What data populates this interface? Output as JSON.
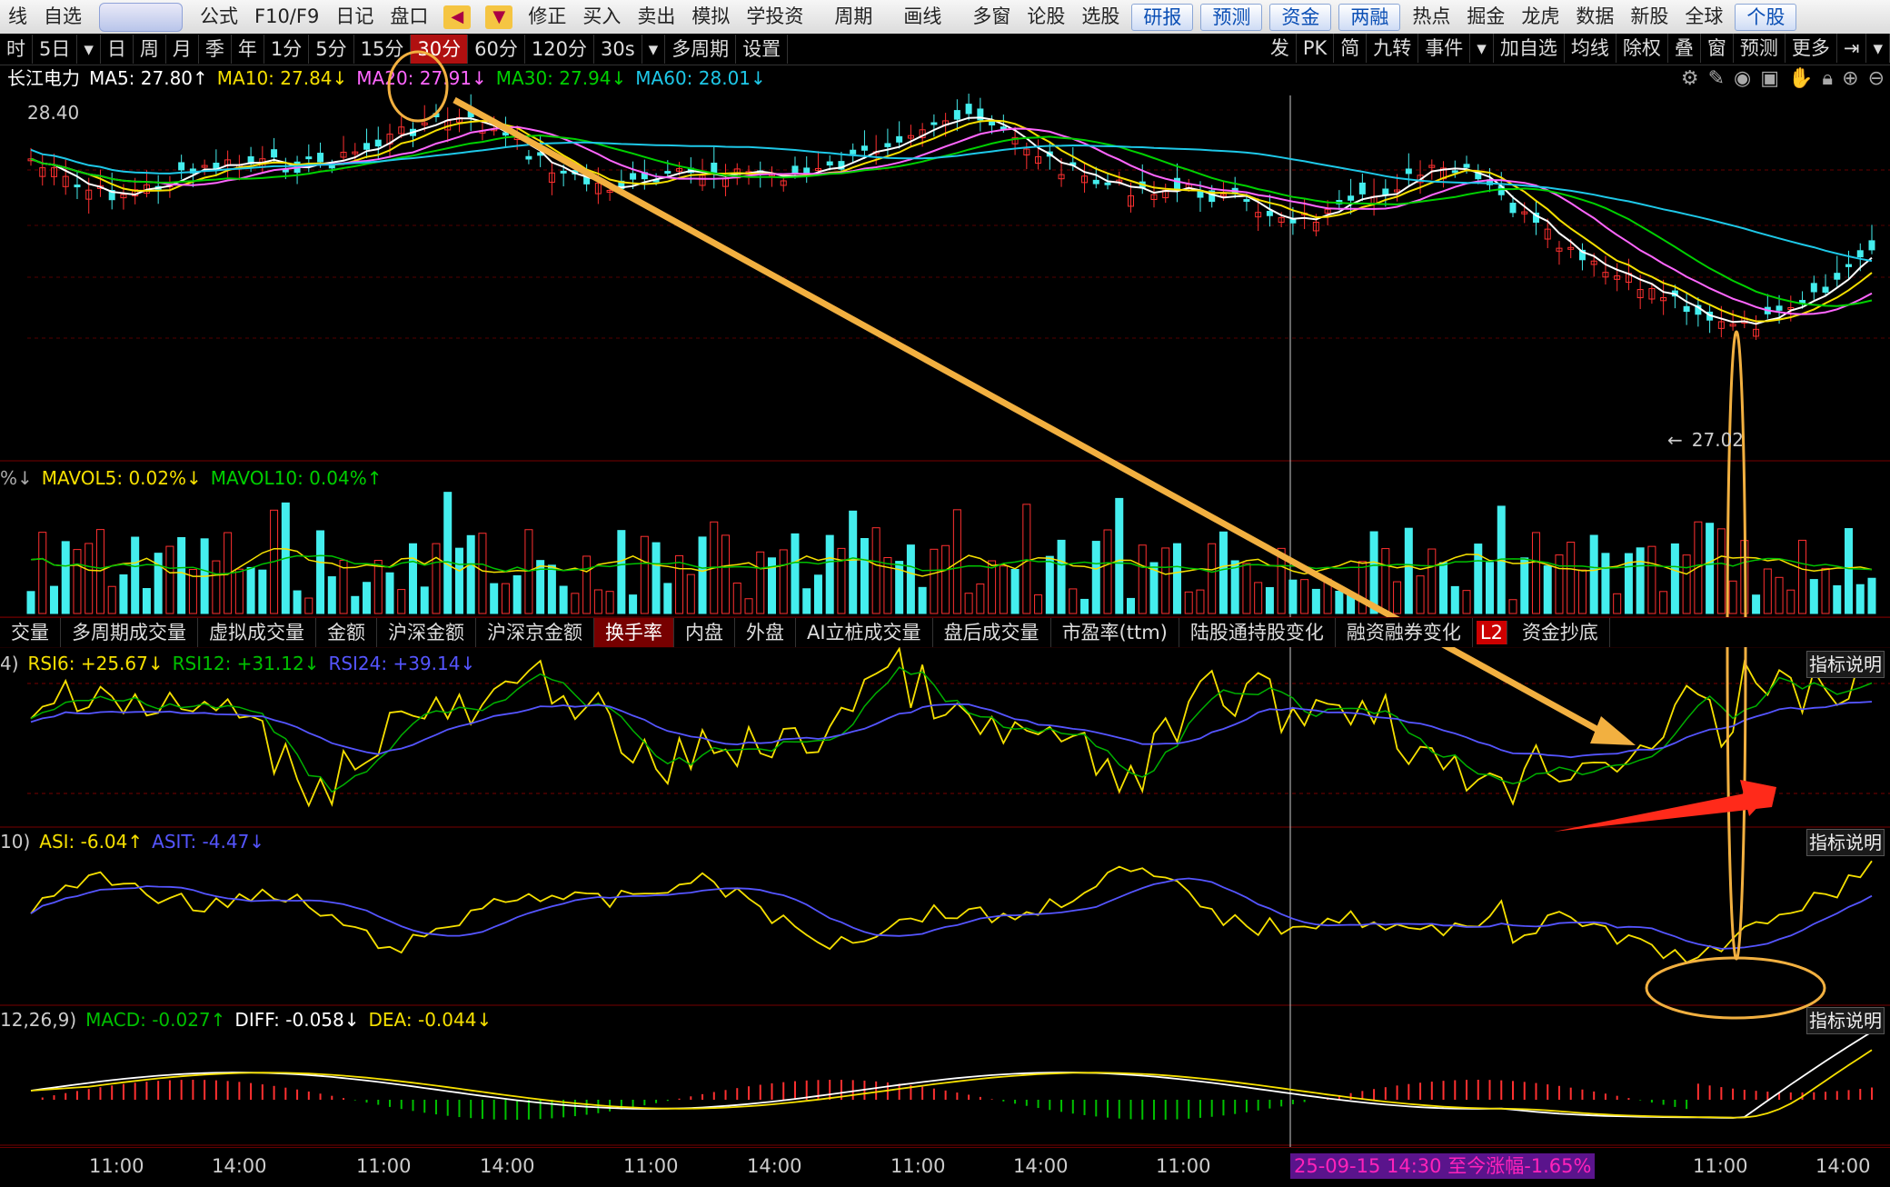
{
  "toolbar": {
    "items": [
      "线",
      "自选",
      "公式",
      "F10/F9",
      "日记",
      "盘口",
      "修正",
      "买入",
      "卖出",
      "模拟",
      "学投资",
      "周期",
      "画线",
      "多窗",
      "论股",
      "选股"
    ],
    "highlight": [
      "研报",
      "预测",
      "资金",
      "两融"
    ],
    "items2": [
      "热点",
      "掘金",
      "龙虎",
      "数据",
      "新股",
      "全球"
    ],
    "last": "个股"
  },
  "periods": {
    "items": [
      "时",
      "5日",
      "日",
      "周",
      "月",
      "季",
      "年",
      "1分",
      "5分",
      "15分",
      "30分",
      "60分",
      "120分",
      "30s",
      "多周期",
      "设置"
    ],
    "active": "30分",
    "right": [
      "发",
      "PK",
      "简",
      "九转",
      "事件",
      "加自选",
      "均线",
      "除权",
      "叠",
      "窗",
      "预测",
      "更多"
    ]
  },
  "ma": {
    "stock": "长江电力",
    "ma5": "MA5: 27.80↑",
    "ma10": "MA10: 27.84↓",
    "ma20": "MA20: 27.91↓",
    "ma30": "MA30: 27.94↓",
    "ma60": "MA60: 28.01↓",
    "price_top": "28.40",
    "price_low": "27.02"
  },
  "colors": {
    "ma5": "#ffffff",
    "ma10": "#f6e000",
    "ma20": "#ff66ff",
    "ma30": "#00d000",
    "ma60": "#1ec8e8",
    "up": "#ff3030",
    "down": "#44eeee",
    "highlight": "#f2b040",
    "arrow": "#ff2a1a"
  },
  "volume": {
    "mavol5": "MAVOL5: 0.02%↓",
    "mavol10": "MAVOL10: 0.04%↑",
    "prefix": "%↓"
  },
  "indicators": {
    "items": [
      "交量",
      "多周期成交量",
      "虚拟成交量",
      "金额",
      "沪深金额",
      "沪深京金额",
      "换手率",
      "内盘",
      "外盘",
      "AI立桩成交量",
      "盘后成交量",
      "市盈率(ttm)",
      "陆股通持股变化",
      "融资融券变化",
      "L2",
      "资金抄底"
    ],
    "active": "换手率"
  },
  "rsi": {
    "prefix": "4)",
    "rsi6": "RSI6: +25.67↓",
    "rsi12": "RSI12: +31.12↓",
    "rsi24": "RSI24: +39.14↓"
  },
  "asi": {
    "prefix": "10)",
    "asi": "ASI: -6.04↑",
    "asit": "ASIT: -4.47↓"
  },
  "macd": {
    "prefix": "12,26,9)",
    "macd": "MACD: -0.027↑",
    "diff": "DIFF: -0.058↓",
    "dea": "DEA: -0.044↓"
  },
  "explain_label": "指标说明",
  "time": {
    "labels": [
      "11:00",
      "14:00",
      "11:00",
      "14:00",
      "11:00",
      "14:00",
      "11:00",
      "14:00",
      "11:00",
      "11:00",
      "14:00"
    ],
    "range": "25-09-15 14:30 至今涨幅-1.65%"
  }
}
